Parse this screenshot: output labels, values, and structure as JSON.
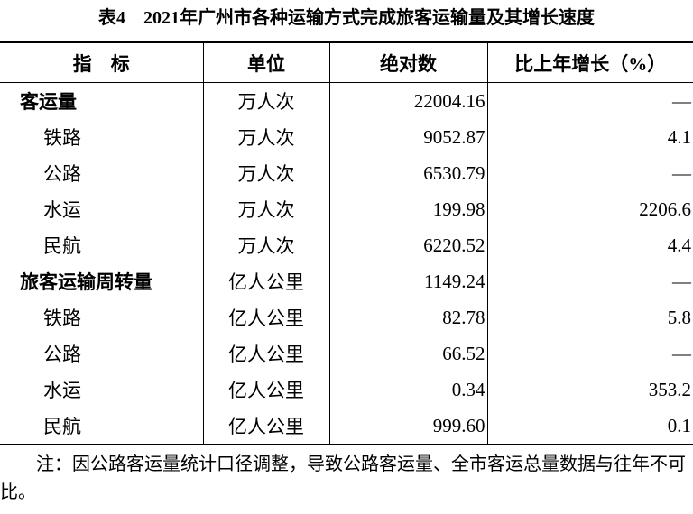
{
  "title": "表4　2021年广州市各种运输方式完成旅客运输量及其增长速度",
  "table": {
    "header": [
      "指　标",
      "单位",
      "绝对数",
      "比上年增长（%）"
    ],
    "rows": [
      [
        "客运量",
        "万人次",
        "22004.16",
        "—"
      ],
      [
        "铁路",
        "万人次",
        "9052.87",
        "4.1"
      ],
      [
        "公路",
        "万人次",
        "6530.79",
        "—"
      ],
      [
        "水运",
        "万人次",
        "199.98",
        "2206.6"
      ],
      [
        "民航",
        "万人次",
        "6220.52",
        "4.4"
      ],
      [
        "旅客运输周转量",
        "亿人公里",
        "1149.24",
        "—"
      ],
      [
        "铁路",
        "亿人公里",
        "82.78",
        "5.8"
      ],
      [
        "公路",
        "亿人公里",
        "66.52",
        "—"
      ],
      [
        "水运",
        "亿人公里",
        "0.34",
        "353.2"
      ],
      [
        "民航",
        "亿人公里",
        "999.60",
        "0.1"
      ]
    ],
    "indented": [
      false,
      true,
      true,
      true,
      true,
      false,
      true,
      true,
      true,
      true
    ]
  },
  "note": "注：因公路客运量统计口径调整，导致公路客运量、全市客运总量数据与往年不可比。"
}
